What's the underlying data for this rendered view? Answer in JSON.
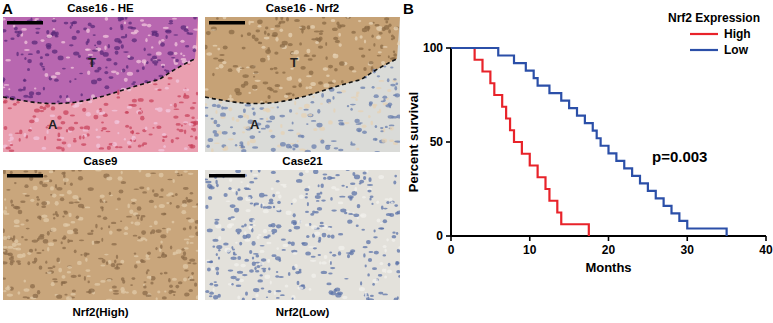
{
  "panel_labels": [
    "A",
    "B"
  ],
  "panel_a": {
    "images": [
      {
        "title": "Case16 - HE",
        "regions": [
          "T",
          "A"
        ]
      },
      {
        "title": "Case16 - Nrf2",
        "regions": [
          "T",
          "A"
        ]
      },
      {
        "title": "Case9",
        "caption": "Nrf2(High)"
      },
      {
        "title": "Case21",
        "caption": "Nrf2(Low)"
      }
    ]
  },
  "chart_data": {
    "type": "line",
    "line_style": "step",
    "x_label": "Months",
    "y_label": "Percent survival",
    "legend_title": "Nrf2 Expression",
    "legend": "top-right",
    "annotation": "p=0.003",
    "xlim": [
      0,
      40
    ],
    "xticks": [
      0,
      10,
      20,
      30,
      40
    ],
    "ylim": [
      0,
      100
    ],
    "yticks": [
      0,
      50,
      100
    ],
    "series": [
      {
        "name": "High",
        "color": "#e8232a",
        "x": [
          0,
          3,
          4,
          5,
          5.5,
          6.5,
          7,
          7.5,
          8,
          9,
          10,
          11,
          12,
          12.5,
          13.5,
          14,
          17.5
        ],
        "values": [
          100,
          93.75,
          87.5,
          81.25,
          75,
          68.75,
          62.5,
          56.25,
          50,
          43.75,
          37.5,
          31.25,
          25,
          18.75,
          12.5,
          6.25,
          0
        ]
      },
      {
        "name": "Low",
        "color": "#2b4fa8",
        "x": [
          0,
          6,
          8,
          9.5,
          10.5,
          11,
          12.5,
          14,
          15,
          16,
          17,
          18,
          18.5,
          19,
          20,
          21,
          22,
          23,
          24,
          25,
          26,
          27,
          28,
          29,
          30,
          35
        ],
        "values": [
          100,
          96,
          92,
          88,
          84,
          80,
          76,
          72,
          68,
          64,
          60,
          56,
          52,
          48,
          44,
          40,
          36,
          32,
          28,
          24,
          20,
          16,
          12,
          8,
          4,
          0
        ]
      }
    ]
  }
}
